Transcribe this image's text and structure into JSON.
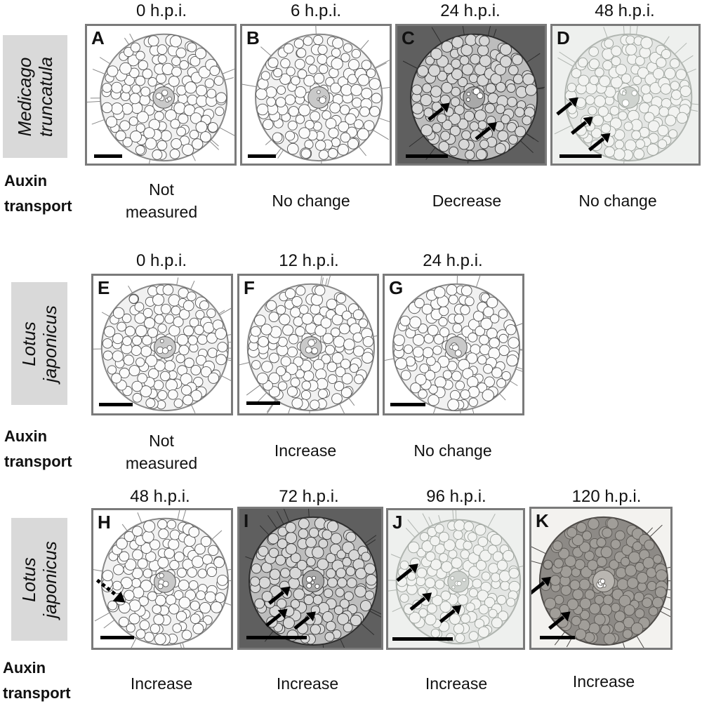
{
  "rows": [
    {
      "species": [
        "Medicago",
        "truncatula"
      ],
      "auxin_label": [
        "Auxin",
        "transport"
      ],
      "panels": [
        {
          "letter": "A",
          "time": "0 h.p.i.",
          "outcome": [
            "Not",
            "measured"
          ],
          "style": "section"
        },
        {
          "letter": "B",
          "time": "6 h.p.i.",
          "outcome": [
            "No change"
          ],
          "style": "section"
        },
        {
          "letter": "C",
          "time": "24 h.p.i.",
          "outcome": [
            "Decrease"
          ],
          "style": "dark"
        },
        {
          "letter": "D",
          "time": "48 h.p.i.",
          "outcome": [
            "No change"
          ],
          "style": "light"
        }
      ]
    },
    {
      "species": [
        "Lotus",
        "japonicus"
      ],
      "auxin_label": [
        "Auxin",
        "transport"
      ],
      "panels": [
        {
          "letter": "E",
          "time": "0 h.p.i.",
          "outcome": [
            "Not",
            "measured"
          ],
          "style": "section"
        },
        {
          "letter": "F",
          "time": "12 h.p.i.",
          "outcome": [
            "Increase"
          ],
          "style": "section"
        },
        {
          "letter": "G",
          "time": "24 h.p.i.",
          "outcome": [
            "No change"
          ],
          "style": "section"
        }
      ]
    },
    {
      "species": [
        "Lotus",
        "japonicus"
      ],
      "auxin_label": [
        "Auxin",
        "transport"
      ],
      "panels": [
        {
          "letter": "H",
          "time": "48 h.p.i.",
          "outcome": [
            "Increase"
          ],
          "style": "section"
        },
        {
          "letter": "I",
          "time": "72 h.p.i.",
          "outcome": [
            "Increase"
          ],
          "style": "dark"
        },
        {
          "letter": "J",
          "time": "96 h.p.i.",
          "outcome": [
            "Increase"
          ],
          "style": "light"
        },
        {
          "letter": "K",
          "time": "120 h.p.i.",
          "outcome": [
            "Increase"
          ],
          "style": "brown"
        }
      ]
    }
  ]
}
